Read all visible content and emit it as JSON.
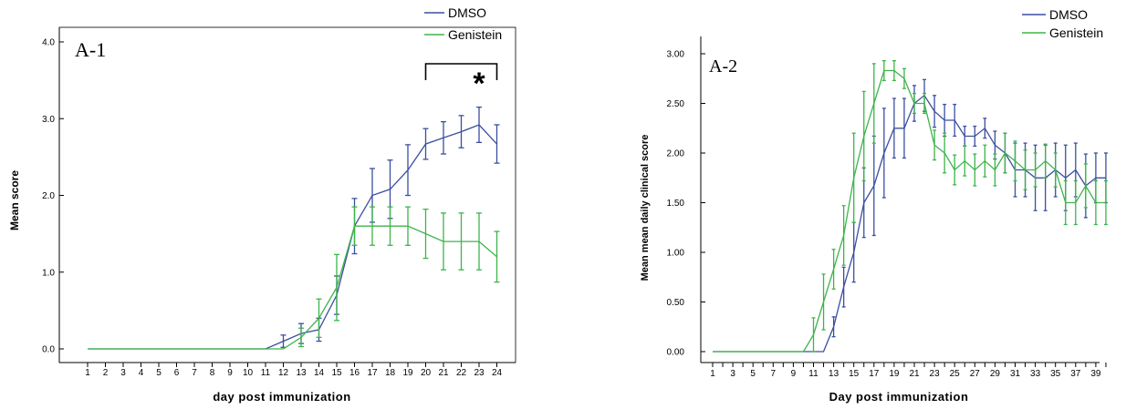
{
  "chart_data": [
    {
      "type": "line",
      "panel_label": "A-1",
      "xlabel": "day post immunization",
      "ylabel": "Mean score",
      "x": [
        1,
        2,
        3,
        4,
        5,
        6,
        7,
        8,
        9,
        10,
        11,
        12,
        13,
        14,
        15,
        16,
        17,
        18,
        19,
        20,
        21,
        22,
        23,
        24
      ],
      "ylim": [
        0,
        4
      ],
      "yticks": [
        "0.0",
        "1.0",
        "2.0",
        "3.0",
        "4.0"
      ],
      "legend_position": "top-right",
      "significance": {
        "label": "*",
        "from_x": 20,
        "to_x": 24
      },
      "series": [
        {
          "name": "DMSO",
          "color": "#3b4fa0",
          "values": [
            0,
            0,
            0,
            0,
            0,
            0,
            0,
            0,
            0,
            0,
            0,
            0.1,
            0.2,
            0.25,
            0.7,
            1.6,
            2.0,
            2.08,
            2.33,
            2.67,
            2.75,
            2.83,
            2.92,
            2.67
          ],
          "errors": [
            0,
            0,
            0,
            0,
            0,
            0,
            0,
            0,
            0,
            0,
            0,
            0.08,
            0.13,
            0.15,
            0.25,
            0.36,
            0.35,
            0.38,
            0.33,
            0.2,
            0.21,
            0.21,
            0.23,
            0.25
          ]
        },
        {
          "name": "Genistein",
          "color": "#3cb54a",
          "values": [
            0,
            0,
            0,
            0,
            0,
            0,
            0,
            0,
            0,
            0,
            0,
            0,
            0.15,
            0.4,
            0.8,
            1.6,
            1.6,
            1.6,
            1.6,
            1.5,
            1.4,
            1.4,
            1.4,
            1.2
          ],
          "errors": [
            0,
            0,
            0,
            0,
            0,
            0,
            0,
            0,
            0,
            0,
            0,
            0,
            0.12,
            0.25,
            0.43,
            0.25,
            0.25,
            0.25,
            0.25,
            0.32,
            0.37,
            0.37,
            0.37,
            0.33
          ]
        }
      ]
    },
    {
      "type": "line",
      "panel_label": "A-2",
      "xlabel": "Day post immunization",
      "ylabel": "Mean mean daily clinical score",
      "x": [
        1,
        2,
        3,
        4,
        5,
        6,
        7,
        8,
        9,
        10,
        11,
        12,
        13,
        14,
        15,
        16,
        17,
        18,
        19,
        20,
        21,
        22,
        23,
        24,
        25,
        26,
        27,
        28,
        29,
        30,
        31,
        32,
        33,
        34,
        35,
        36,
        37,
        38,
        39,
        40
      ],
      "xtick_labels": [
        "1",
        "3",
        "5",
        "7",
        "9",
        "11",
        "13",
        "15",
        "17",
        "19",
        "21",
        "23",
        "25",
        "27",
        "29",
        "31",
        "33",
        "35",
        "37",
        "39"
      ],
      "ylim": [
        0,
        3
      ],
      "yticks": [
        "0.00",
        "0.50",
        "1.00",
        "1.50",
        "2.00",
        "2.50",
        "3.00"
      ],
      "legend_position": "top-right",
      "series": [
        {
          "name": "DMSO",
          "color": "#3b4fa0",
          "values": [
            0,
            0,
            0,
            0,
            0,
            0,
            0,
            0,
            0,
            0,
            0,
            0,
            0.25,
            0.65,
            1.0,
            1.5,
            1.67,
            2.0,
            2.25,
            2.25,
            2.5,
            2.58,
            2.42,
            2.33,
            2.33,
            2.17,
            2.17,
            2.25,
            2.08,
            2.0,
            1.83,
            1.83,
            1.75,
            1.75,
            1.83,
            1.75,
            1.83,
            1.67,
            1.75,
            1.75
          ],
          "errors": [
            0,
            0,
            0,
            0,
            0,
            0,
            0,
            0,
            0,
            0,
            0,
            0,
            0.1,
            0.2,
            0.3,
            0.35,
            0.5,
            0.45,
            0.3,
            0.3,
            0.18,
            0.16,
            0.16,
            0.16,
            0.16,
            0.1,
            0.1,
            0.1,
            0.14,
            0.2,
            0.27,
            0.27,
            0.33,
            0.33,
            0.27,
            0.33,
            0.27,
            0.32,
            0.25,
            0.25
          ]
        },
        {
          "name": "Genistein",
          "color": "#3cb54a",
          "values": [
            0,
            0,
            0,
            0,
            0,
            0,
            0,
            0,
            0,
            0,
            0.17,
            0.5,
            0.83,
            1.17,
            1.75,
            2.17,
            2.5,
            2.83,
            2.83,
            2.75,
            2.5,
            2.5,
            2.08,
            2.0,
            1.83,
            1.92,
            1.83,
            1.92,
            1.83,
            2.0,
            1.92,
            1.83,
            1.83,
            1.92,
            1.83,
            1.5,
            1.5,
            1.67,
            1.5,
            1.5
          ],
          "errors": [
            0,
            0,
            0,
            0,
            0,
            0,
            0,
            0,
            0,
            0,
            0.17,
            0.28,
            0.2,
            0.3,
            0.45,
            0.45,
            0.4,
            0.1,
            0.1,
            0.1,
            0.1,
            0.1,
            0.15,
            0.2,
            0.15,
            0.15,
            0.16,
            0.16,
            0.16,
            0.2,
            0.2,
            0.2,
            0.17,
            0.17,
            0.17,
            0.22,
            0.22,
            0.22,
            0.22,
            0.22
          ]
        }
      ]
    }
  ]
}
